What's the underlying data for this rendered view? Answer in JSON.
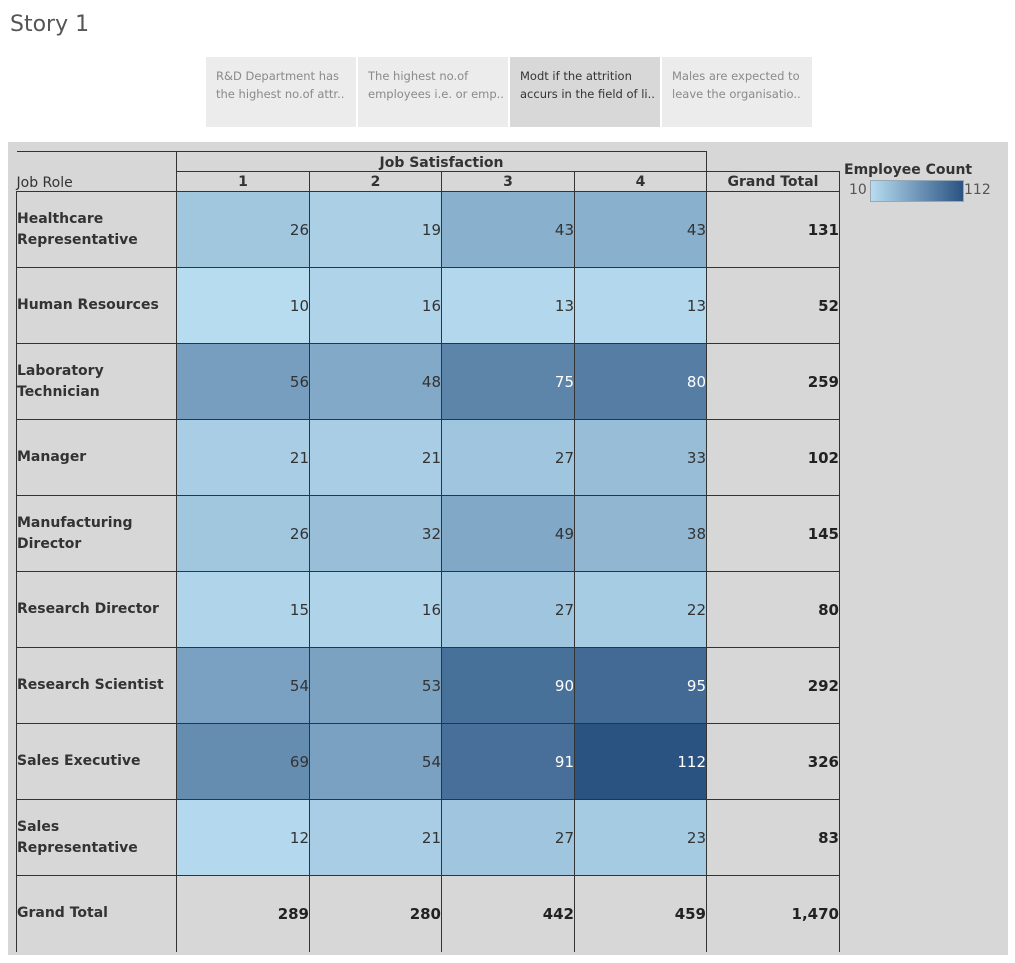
{
  "story": {
    "title": "Story 1",
    "points": [
      {
        "line1": "R&D Department has",
        "line2": "the highest no.of attr..",
        "active": false
      },
      {
        "line1": "The highest no.of",
        "line2": "employees i.e. or emp..",
        "active": false
      },
      {
        "line1": "Modt if the attrition",
        "line2": "accurs in the field of li..",
        "active": true
      },
      {
        "line1": "Males are expected to",
        "line2": "leave the organisatio..",
        "active": false
      }
    ]
  },
  "crosstab": {
    "row_header": "Job Role",
    "column_header": "Job Satisfaction",
    "columns": [
      "1",
      "2",
      "3",
      "4"
    ],
    "grand_total_label": "Grand Total",
    "rows": [
      {
        "label": "Healthcare Representative",
        "values": [
          26,
          19,
          43,
          43
        ],
        "total": "131"
      },
      {
        "label": "Human Resources",
        "values": [
          10,
          16,
          13,
          13
        ],
        "total": "52"
      },
      {
        "label": "Laboratory Technician",
        "values": [
          56,
          48,
          75,
          80
        ],
        "total": "259"
      },
      {
        "label": "Manager",
        "values": [
          21,
          21,
          27,
          33
        ],
        "total": "102"
      },
      {
        "label": "Manufacturing Director",
        "values": [
          26,
          32,
          49,
          38
        ],
        "total": "145"
      },
      {
        "label": "Research Director",
        "values": [
          15,
          16,
          27,
          22
        ],
        "total": "80"
      },
      {
        "label": "Research Scientist",
        "values": [
          54,
          53,
          90,
          95
        ],
        "total": "292"
      },
      {
        "label": "Sales Executive",
        "values": [
          69,
          54,
          91,
          112
        ],
        "total": "326"
      },
      {
        "label": "Sales Representative",
        "values": [
          12,
          21,
          27,
          23
        ],
        "total": "83"
      }
    ],
    "grand_total_row": {
      "label": "Grand Total",
      "values": [
        "289",
        "280",
        "442",
        "459"
      ],
      "total": "1,470"
    }
  },
  "legend": {
    "title": "Employee Count",
    "min": "10",
    "max": "112",
    "min_value": 10,
    "max_value": 112,
    "color_low": "#b7dcf0",
    "color_high": "#2a5382"
  }
}
